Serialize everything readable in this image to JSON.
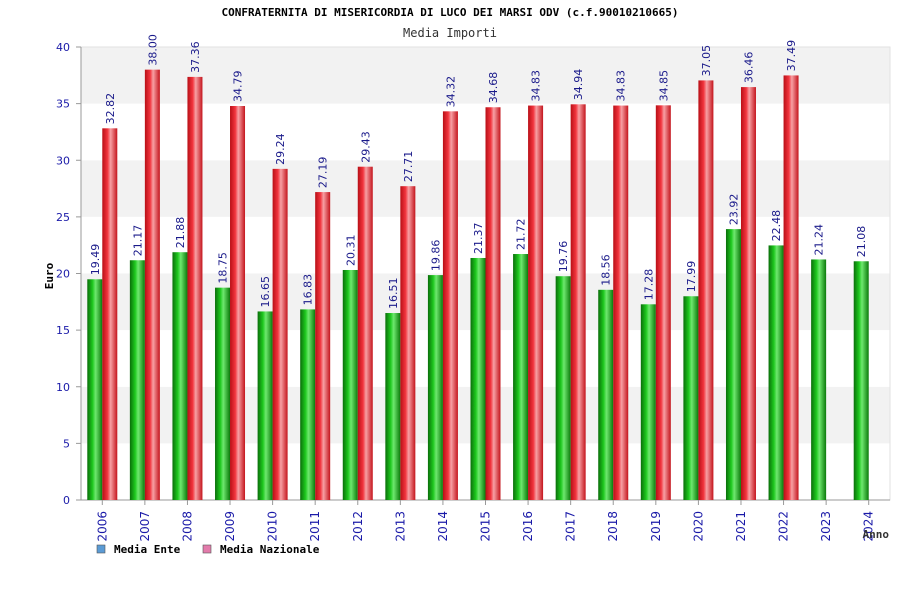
{
  "chart_data": {
    "type": "bar",
    "title": "CONFRATERNITA DI MISERICORDIA DI LUCO DEI MARSI ODV (c.f.90010210665)",
    "subtitle": "Media Importi",
    "xlabel": "Anno",
    "ylabel": "Euro",
    "ylim": [
      0,
      40
    ],
    "yticks": [
      0,
      5,
      10,
      15,
      20,
      25,
      30,
      35,
      40
    ],
    "grid": true,
    "legend_position": "bottom-left",
    "categories": [
      "2006",
      "2007",
      "2008",
      "2009",
      "2010",
      "2011",
      "2012",
      "2013",
      "2014",
      "2015",
      "2016",
      "2017",
      "2018",
      "2019",
      "2020",
      "2021",
      "2022",
      "2023",
      "2024"
    ],
    "series": [
      {
        "name": "Media Ente",
        "color": "#1aa81a",
        "legend_color": "#5b9bd5",
        "values": [
          19.49,
          21.17,
          21.88,
          18.75,
          16.65,
          16.83,
          20.31,
          16.51,
          19.86,
          21.37,
          21.72,
          19.76,
          18.56,
          17.28,
          17.99,
          23.92,
          22.48,
          21.24,
          21.08
        ],
        "labels": [
          "19.49",
          "21.17",
          "21.88",
          "18.75",
          "16.65",
          "16.83",
          "20.31",
          "16.51",
          "19.86",
          "21.37",
          "21.72",
          "19.76",
          "18.56",
          "17.28",
          "17.99",
          "23.92",
          "22.48",
          "21.24",
          "21.08"
        ]
      },
      {
        "name": "Media Nazionale",
        "color": "#e8202a",
        "legend_color": "#e37bab",
        "values": [
          32.82,
          38.0,
          37.36,
          34.79,
          29.24,
          27.19,
          29.43,
          27.71,
          34.32,
          34.68,
          34.83,
          34.94,
          34.83,
          34.85,
          37.05,
          36.46,
          37.49,
          null,
          null
        ],
        "labels": [
          "32.82",
          "38.00",
          "37.36",
          "34.79",
          "29.24",
          "27.19",
          "29.43",
          "27.71",
          "34.32",
          "34.68",
          "34.83",
          "34.94",
          "34.83",
          "34.85",
          "37.05",
          "36.46",
          "37.49",
          null,
          null
        ]
      }
    ]
  }
}
